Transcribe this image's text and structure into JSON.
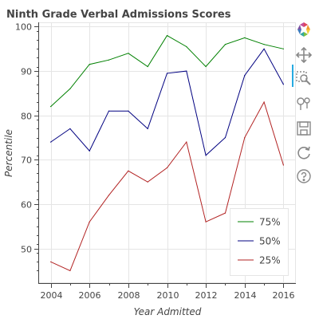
{
  "chart_data": {
    "type": "line",
    "title": "Ninth Grade Verbal Admissions Scores",
    "xlabel": "Year Admitted",
    "ylabel": "Percentile",
    "x": [
      2004,
      2005,
      2006,
      2007,
      2008,
      2009,
      2010,
      2011,
      2012,
      2013,
      2014,
      2015,
      2016
    ],
    "xlim": [
      2003.4,
      2016.6
    ],
    "ylim": [
      42.2,
      100.8
    ],
    "xticks": [
      "2004",
      "2006",
      "2008",
      "2010",
      "2012",
      "2014",
      "2016"
    ],
    "yticks": [
      "50",
      "60",
      "70",
      "80",
      "90",
      "100"
    ],
    "grid": true,
    "legend_position": "bottom-right",
    "series": [
      {
        "name": "75%",
        "color": "#008000",
        "values": [
          82,
          86,
          91.5,
          92.5,
          94,
          91,
          98,
          95.5,
          91,
          96,
          97.5,
          96,
          95
        ]
      },
      {
        "name": "50%",
        "color": "#000080",
        "values": [
          74,
          77,
          72,
          81,
          81,
          77,
          89.5,
          90,
          71,
          75,
          89,
          95,
          87
        ]
      },
      {
        "name": "25%",
        "color": "#b22222",
        "values": [
          47,
          45,
          56,
          62,
          67.5,
          65,
          68.2,
          74,
          56,
          58,
          75,
          83,
          68.8
        ]
      }
    ]
  },
  "toolbar": {
    "tools": [
      "bokeh-logo-icon",
      "pan-icon",
      "box-zoom-icon",
      "wheel-zoom-icon",
      "save-icon",
      "reset-icon",
      "help-icon"
    ]
  }
}
